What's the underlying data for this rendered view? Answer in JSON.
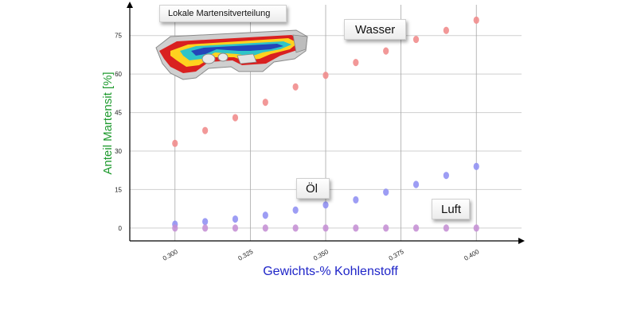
{
  "inset": {
    "title": "Lokale Martensitverteilung"
  },
  "callouts": {
    "water": "Wasser",
    "oil": "Öl",
    "air": "Luft"
  },
  "colors": {
    "water": "#f08a8a",
    "oil": "#8f8ff2",
    "air": "#c58fd4",
    "ylabel": "#1e9a2e",
    "xlabel": "#1f25c8"
  },
  "chart_data": {
    "type": "scatter",
    "title": "",
    "xlabel": "Gewichts-% Kohlenstoff",
    "ylabel": "Anteil Martensit [%]",
    "x_ticks": [
      "0.300",
      "0.325",
      "0.350",
      "0.375",
      "0.400"
    ],
    "y_ticks": [
      "0",
      "15",
      "30",
      "45",
      "60",
      "75"
    ],
    "xlim": [
      0.285,
      0.415
    ],
    "ylim": [
      -5,
      87
    ],
    "grid": true,
    "x": [
      0.3,
      0.31,
      0.32,
      0.33,
      0.34,
      0.35,
      0.36,
      0.37,
      0.38,
      0.39,
      0.4
    ],
    "series": [
      {
        "name": "Wasser",
        "values": [
          33.0,
          38.0,
          43.0,
          49.0,
          55.0,
          59.5,
          64.5,
          69.0,
          73.5,
          77.0,
          81.0
        ]
      },
      {
        "name": "Öl",
        "values": [
          1.5,
          2.5,
          3.5,
          5.0,
          7.0,
          9.0,
          11.0,
          14.0,
          17.0,
          20.5,
          24.0
        ]
      },
      {
        "name": "Luft",
        "values": [
          0,
          0,
          0,
          0,
          0,
          0,
          0,
          0,
          0,
          0,
          0
        ]
      }
    ]
  }
}
